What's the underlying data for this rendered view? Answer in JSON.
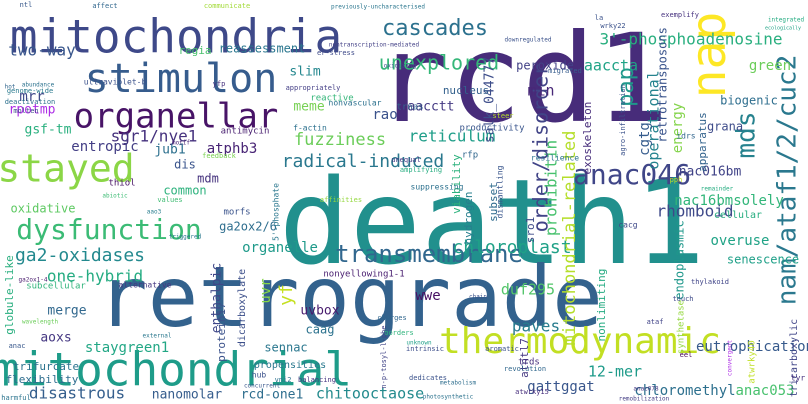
{
  "words": [
    {
      "text": "death1",
      "color": "#21908d"
    },
    {
      "text": "retrograde",
      "color": "#33628d"
    },
    {
      "text": "rcd1",
      "color": "#472c7a"
    },
    {
      "text": "mitochondria",
      "color": "#3e4989"
    },
    {
      "text": "mitochondrial",
      "color": "#1e9c89"
    },
    {
      "text": "stimulon",
      "color": "#365c8d"
    },
    {
      "text": "organellar",
      "color": "#481467"
    },
    {
      "text": "thermodynamic",
      "color": "#c2df23"
    },
    {
      "text": "nap",
      "color": "#fde725"
    },
    {
      "text": "stayed",
      "color": "#8bd646"
    },
    {
      "text": "dysfunction",
      "color": "#3bbb75"
    },
    {
      "text": "anac046",
      "color": "#404688"
    },
    {
      "text": "transmembrane",
      "color": "#31678e"
    },
    {
      "text": "cascades",
      "color": "#2c718e"
    },
    {
      "text": "3'-phosphoadenosine",
      "color": "#29af7f"
    },
    {
      "text": "nam/ataf1/2/cuc2",
      "color": "#2a788e"
    },
    {
      "text": "mds",
      "color": "#26828e"
    },
    {
      "text": "unexplored",
      "color": "#35b779"
    },
    {
      "text": "pap",
      "color": "#1f988b"
    },
    {
      "text": "order/disorder",
      "color": "#414487"
    },
    {
      "text": "radical-induced",
      "color": "#2a788e"
    },
    {
      "text": "chloroplast",
      "color": "#1fa187"
    },
    {
      "text": "ga2-oxidases",
      "color": "#23898e"
    },
    {
      "text": "fuzziness",
      "color": "#6ccd5a"
    },
    {
      "text": "reticulum",
      "color": "#1f9e89"
    },
    {
      "text": "one-hybrid",
      "color": "#25ac82"
    },
    {
      "text": "two-way",
      "color": "#39568c"
    },
    {
      "text": "sgr1/nye1",
      "color": "#46327e"
    },
    {
      "text": "organelle",
      "color": "#1f9a8a"
    },
    {
      "text": "aaccta",
      "color": "#20a386"
    },
    {
      "text": "mitochondrial-related",
      "color": "#b5de2b"
    },
    {
      "text": "nac16bmsolely",
      "color": "#32b67a"
    },
    {
      "text": "rhomboid",
      "color": "#3e4989"
    },
    {
      "text": "nac016bm",
      "color": "#404387"
    },
    {
      "text": "operational",
      "color": "#25838e"
    },
    {
      "text": "prohibitin",
      "color": "#48c16e"
    },
    {
      "text": "cgtg",
      "color": "#365c8d"
    },
    {
      "text": "retrotransposons",
      "color": "#3a548c"
    },
    {
      "text": "energy",
      "color": "#84d44b"
    },
    {
      "text": "min",
      "color": "#482878"
    },
    {
      "text": "overuse",
      "color": "#20a386"
    },
    {
      "text": "12-mer",
      "color": "#1e9b8a"
    },
    {
      "text": "disastrous",
      "color": "#355f8d"
    },
    {
      "text": "staygreen1",
      "color": "#22a785"
    },
    {
      "text": "duf295",
      "color": "#52c569"
    },
    {
      "text": "paves",
      "color": "#287c8e"
    },
    {
      "text": "chitooctaose",
      "color": "#238a8d"
    },
    {
      "text": "gattggat",
      "color": "#39568c"
    },
    {
      "text": "chloromethyl",
      "color": "#2d708e"
    },
    {
      "text": "anac053",
      "color": "#48c16e"
    },
    {
      "text": "eutrophication",
      "color": "#375a8c"
    },
    {
      "text": "uvbox",
      "color": "#481c6e"
    },
    {
      "text": "caag",
      "color": "#2c728e"
    },
    {
      "text": "merge",
      "color": "#31688e"
    },
    {
      "text": "aoxs",
      "color": "#453882"
    },
    {
      "text": "sennac",
      "color": "#2a778e"
    },
    {
      "text": "nanomolar",
      "color": "#365d8d"
    },
    {
      "text": "rcd-one1",
      "color": "#2e6e8e"
    },
    {
      "text": "wwe",
      "color": "#471063"
    },
    {
      "text": "enthalpic",
      "color": "#3f4788"
    },
    {
      "text": "uvr",
      "color": "#86d549"
    },
    {
      "text": "yf",
      "color": "#c5e021"
    },
    {
      "text": "mdm",
      "color": "#46337e"
    },
    {
      "text": "dis",
      "color": "#3a548c"
    },
    {
      "text": "slim",
      "color": "#24878e"
    },
    {
      "text": "meme",
      "color": "#77d153"
    },
    {
      "text": "mrr",
      "color": "#3f4889"
    },
    {
      "text": "rpotmp",
      "color": "#ad2ee6"
    },
    {
      "text": "gsf-tm",
      "color": "#2ab07f"
    },
    {
      "text": "entropic",
      "color": "#433e85"
    },
    {
      "text": "atphb3",
      "color": "#482475"
    },
    {
      "text": "jub1",
      "color": "#2d708e"
    },
    {
      "text": "common",
      "color": "#2db27d"
    },
    {
      "text": "oxidative",
      "color": "#5ec962"
    },
    {
      "text": "ga2ox2/6",
      "color": "#2e6e8e"
    },
    {
      "text": "rao",
      "color": "#3b528b"
    },
    {
      "text": "aacctt",
      "color": "#443a83"
    },
    {
      "text": "salk_044777",
      "color": "#3d4d8a"
    },
    {
      "text": "grana",
      "color": "#3e4c8a"
    },
    {
      "text": "peroxide",
      "color": "#424186"
    },
    {
      "text": "green",
      "color": "#6ccd5a"
    },
    {
      "text": "biogenic",
      "color": "#2e6e8e"
    },
    {
      "text": "apparatus",
      "color": "#33638d"
    },
    {
      "text": "senescence",
      "color": "#1fa088"
    },
    {
      "text": "endoplasmic",
      "color": "#1f988b"
    },
    {
      "text": "reassessment",
      "color": "#2a768e"
    },
    {
      "text": "nucleus",
      "color": "#34618d"
    },
    {
      "text": "regia",
      "color": "#4ac16d"
    },
    {
      "text": "hydrogen",
      "color": "#277f8e"
    },
    {
      "text": "subset",
      "color": "#2f6b8e"
    },
    {
      "text": "viability",
      "color": "#2db27d"
    },
    {
      "text": "sro1",
      "color": "#3e4a89"
    },
    {
      "text": "atntl7",
      "color": "#453781"
    },
    {
      "text": "trifurcate",
      "color": "#2c738e"
    },
    {
      "text": "flexibility",
      "color": "#2e6d8e"
    },
    {
      "text": "protein17",
      "color": "#3b528b"
    },
    {
      "text": "dicarboxylate",
      "color": "#3c4f8a"
    },
    {
      "text": "cellular",
      "color": "#28ae80"
    },
    {
      "text": "tricarboxylic",
      "color": "#404588"
    },
    {
      "text": "propensities",
      "color": "#2a788e"
    },
    {
      "text": "globule-like",
      "color": "#29af7f"
    },
    {
      "text": "nonlimiting",
      "color": "#25ab82"
    },
    {
      "text": "exoskeleton",
      "color": "#472d7b"
    },
    {
      "text": "atwrky40",
      "color": "#c0df25"
    },
    {
      "text": "synthetase",
      "color": "#95d840"
    },
    {
      "text": "ultraviolet-b",
      "color": "#3b528b"
    },
    {
      "text": "genome-wide",
      "color": "#297a8e"
    },
    {
      "text": "deactivation",
      "color": "#2d718e"
    },
    {
      "text": "molten",
      "color": "#3e4a89"
    },
    {
      "text": "nonvascular",
      "color": "#2c718e"
    },
    {
      "text": "trnas",
      "color": "#33628d"
    },
    {
      "text": "productivity",
      "color": "#39558c"
    },
    {
      "text": "reactive",
      "color": "#34b679"
    },
    {
      "text": "antimycin",
      "color": "#481f70"
    },
    {
      "text": "f-actin",
      "color": "#2c718e"
    },
    {
      "text": "appropriately",
      "color": "#433e85"
    },
    {
      "text": "er-stress",
      "color": "#3e4a89"
    },
    {
      "text": "nontranscription-mediated",
      "color": "#424086"
    },
    {
      "text": "downregulated",
      "color": "#3b528b"
    },
    {
      "text": "previously-uncharacterised",
      "color": "#2a768e"
    },
    {
      "text": "communicate",
      "color": "#a2da37"
    },
    {
      "text": "affect",
      "color": "#31678e"
    },
    {
      "text": "ntl",
      "color": "#38588c"
    },
    {
      "text": "exemplify",
      "color": "#46317e"
    },
    {
      "text": "wrky22",
      "color": "#3b528b"
    },
    {
      "text": "migrated",
      "color": "#365c8d"
    },
    {
      "text": "abundance",
      "color": "#2c728e"
    },
    {
      "text": "hot",
      "color": "#31668e"
    },
    {
      "text": "yfp",
      "color": "#46307e"
    },
    {
      "text": "motif",
      "color": "#482677"
    },
    {
      "text": "resilience",
      "color": "#2c728e"
    },
    {
      "text": "idrs",
      "color": "#31668e"
    },
    {
      "text": "thiol",
      "color": "#471365"
    },
    {
      "text": "feedback",
      "color": "#7ad151"
    },
    {
      "text": "unequal",
      "color": "#443983"
    },
    {
      "text": "amplifying",
      "color": "#27ad81"
    },
    {
      "text": "suppressing",
      "color": "#2d718e"
    },
    {
      "text": "dismantling",
      "color": "#39568c"
    },
    {
      "text": "rfp",
      "color": "#31678e"
    },
    {
      "text": "cacg",
      "color": "#3e4989"
    },
    {
      "text": "morfs",
      "color": "#3a538b"
    },
    {
      "text": "values",
      "color": "#3fbc73"
    },
    {
      "text": "abiotic",
      "color": "#3dbc74"
    },
    {
      "text": "5'-phosphate",
      "color": "#2a778e"
    },
    {
      "text": "affinities",
      "color": "#95d840"
    },
    {
      "text": "nonyellowing1-1",
      "color": "#481d6f"
    },
    {
      "text": "thylakoid",
      "color": "#404588"
    },
    {
      "text": "triggered",
      "color": "#2a788e"
    },
    {
      "text": "subcellular",
      "color": "#30b47b"
    },
    {
      "text": "alternative",
      "color": "#453882"
    },
    {
      "text": "wavelength",
      "color": "#6ccd5a"
    },
    {
      "text": "external",
      "color": "#2a788e"
    },
    {
      "text": "anac",
      "color": "#38588c"
    },
    {
      "text": "intrinsic",
      "color": "#3d4e8a"
    },
    {
      "text": "charges",
      "color": "#31678e"
    },
    {
      "text": "borders",
      "color": "#2fb47c"
    },
    {
      "text": "unknown",
      "color": "#1fa088"
    },
    {
      "text": "ataf",
      "color": "#404387"
    },
    {
      "text": "eel",
      "color": "#440256"
    },
    {
      "text": "convergent",
      "color": "#ad2ee6"
    },
    {
      "text": "aromatic",
      "color": "#3b528b"
    },
    {
      "text": "trds",
      "color": "#472f7d"
    },
    {
      "text": "revolution",
      "color": "#31688e"
    },
    {
      "text": "balancing",
      "color": "#463480"
    },
    {
      "text": "vni2",
      "color": "#2d718e"
    },
    {
      "text": "hub",
      "color": "#3b518b"
    },
    {
      "text": "concurrent",
      "color": "#39568c"
    },
    {
      "text": "harmful",
      "color": "#2b748e"
    },
    {
      "text": "atwrky15",
      "color": "#472e7c"
    },
    {
      "text": "remobilization",
      "color": "#433d84"
    },
    {
      "text": "anac078",
      "color": "#453781"
    },
    {
      "text": "tyr",
      "color": "#46327e"
    },
    {
      "text": "dedicates",
      "color": "#3b528b"
    },
    {
      "text": "photosynthetic",
      "color": "#2c738e"
    },
    {
      "text": "metabolism",
      "color": "#2e6e8e"
    },
    {
      "text": "n-p-tosyl-l-phe",
      "color": "#414487"
    },
    {
      "text": "oxidizing",
      "color": "#3c508b"
    },
    {
      "text": "steer",
      "color": "#b8de29"
    },
    {
      "text": "agro-infiltration",
      "color": "#3b528b"
    },
    {
      "text": "integrated",
      "color": "#25ac82"
    },
    {
      "text": "ecologically",
      "color": "#20a486"
    },
    {
      "text": "remainder",
      "color": "#26ad81"
    },
    {
      "text": "pph",
      "color": "#c2df23"
    },
    {
      "text": "touch",
      "color": "#3e4a89"
    },
    {
      "text": "chain",
      "color": "#3b528b"
    },
    {
      "text": "aao3",
      "color": "#287d8e"
    },
    {
      "text": "ga2ox1-4",
      "color": "#481b6d"
    },
    {
      "text": "la",
      "color": "#3b528b"
    }
  ]
}
